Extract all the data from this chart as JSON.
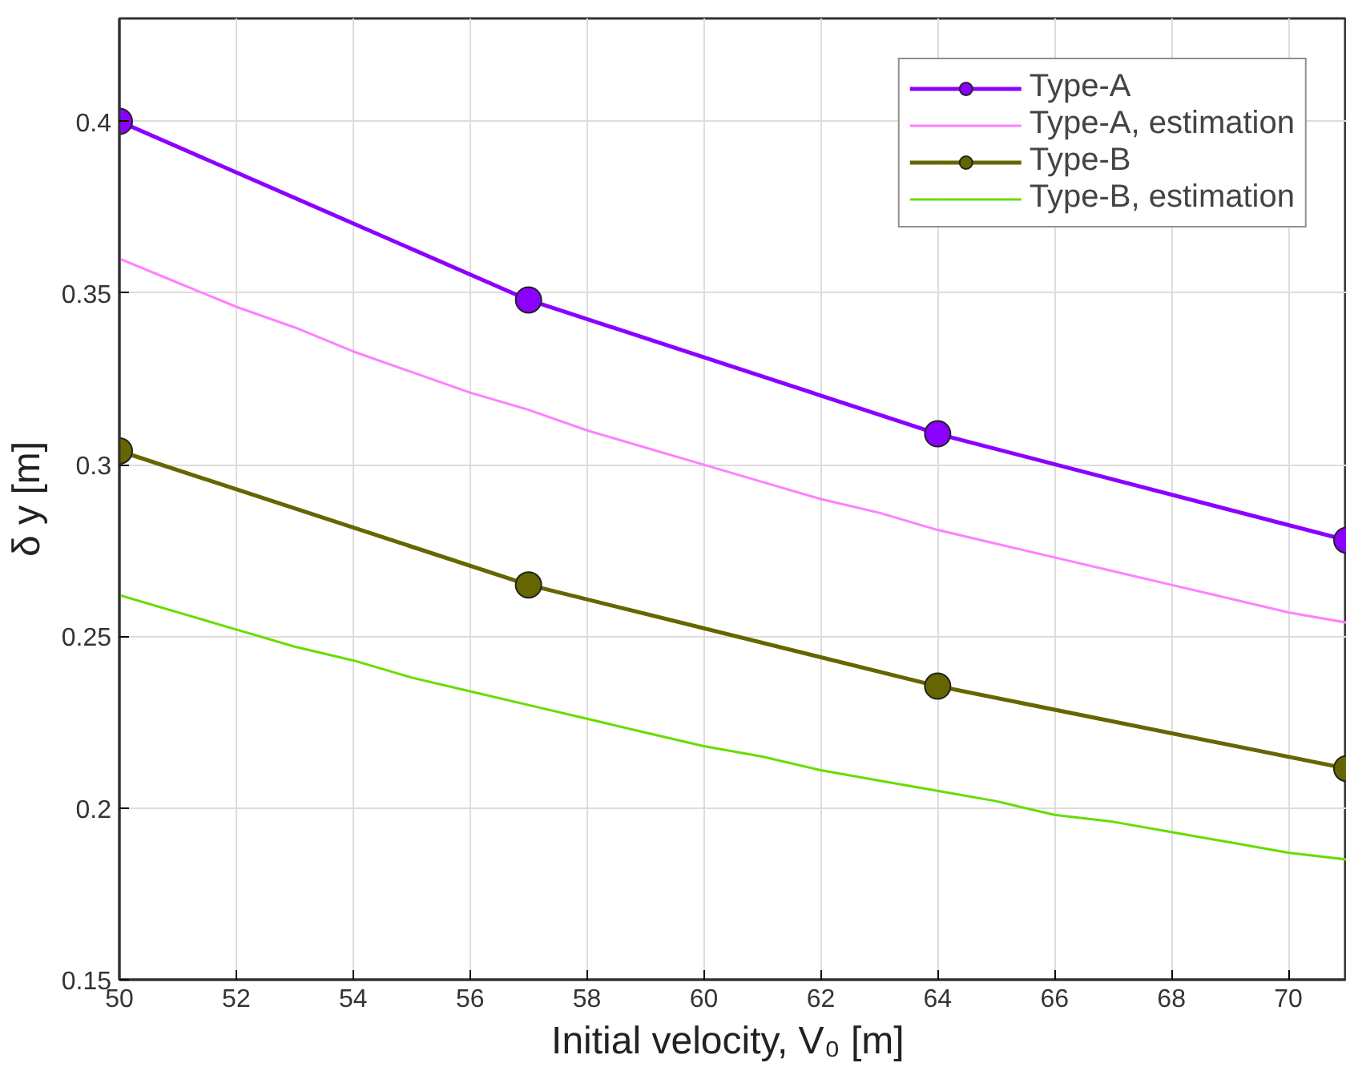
{
  "chart_data": {
    "type": "line",
    "xlabel": "Initial velocity,  V₀ [m]",
    "ylabel": "δ y [m]",
    "xlim": [
      50,
      71
    ],
    "ylim": [
      0.15,
      0.43
    ],
    "xticks": [
      50,
      52,
      54,
      56,
      58,
      60,
      62,
      64,
      66,
      68,
      70
    ],
    "yticks": [
      0.15,
      0.2,
      0.25,
      0.3,
      0.35,
      0.4
    ],
    "grid": true,
    "legend": "top right",
    "series": [
      {
        "name": "Type-A",
        "color": "#8c00ff",
        "marker": "circle",
        "x": [
          50,
          57,
          64,
          71
        ],
        "values": [
          0.4,
          0.348,
          0.309,
          0.278
        ]
      },
      {
        "name": "Type-A, estimation",
        "color": "#ff80ff",
        "marker": "none",
        "x": [
          50,
          51,
          52,
          53,
          54,
          55,
          56,
          57,
          58,
          59,
          60,
          61,
          62,
          63,
          64,
          65,
          66,
          67,
          68,
          69,
          70,
          71
        ],
        "values": [
          0.36,
          0.353,
          0.346,
          0.34,
          0.333,
          0.327,
          0.321,
          0.316,
          0.31,
          0.305,
          0.3,
          0.295,
          0.29,
          0.286,
          0.281,
          0.277,
          0.273,
          0.269,
          0.265,
          0.261,
          0.257,
          0.254
        ]
      },
      {
        "name": "Type-B",
        "color": "#666600",
        "marker": "circle",
        "x": [
          50,
          57,
          64,
          71
        ],
        "values": [
          0.304,
          0.265,
          0.2355,
          0.2115
        ]
      },
      {
        "name": "Type-B, estimation",
        "color": "#66dd00",
        "marker": "none",
        "x": [
          50,
          51,
          52,
          53,
          54,
          55,
          56,
          57,
          58,
          59,
          60,
          61,
          62,
          63,
          64,
          65,
          66,
          67,
          68,
          69,
          70,
          71
        ],
        "values": [
          0.262,
          0.257,
          0.252,
          0.247,
          0.243,
          0.238,
          0.234,
          0.23,
          0.226,
          0.222,
          0.218,
          0.215,
          0.211,
          0.208,
          0.205,
          0.202,
          0.198,
          0.196,
          0.193,
          0.19,
          0.187,
          0.185
        ]
      }
    ]
  }
}
